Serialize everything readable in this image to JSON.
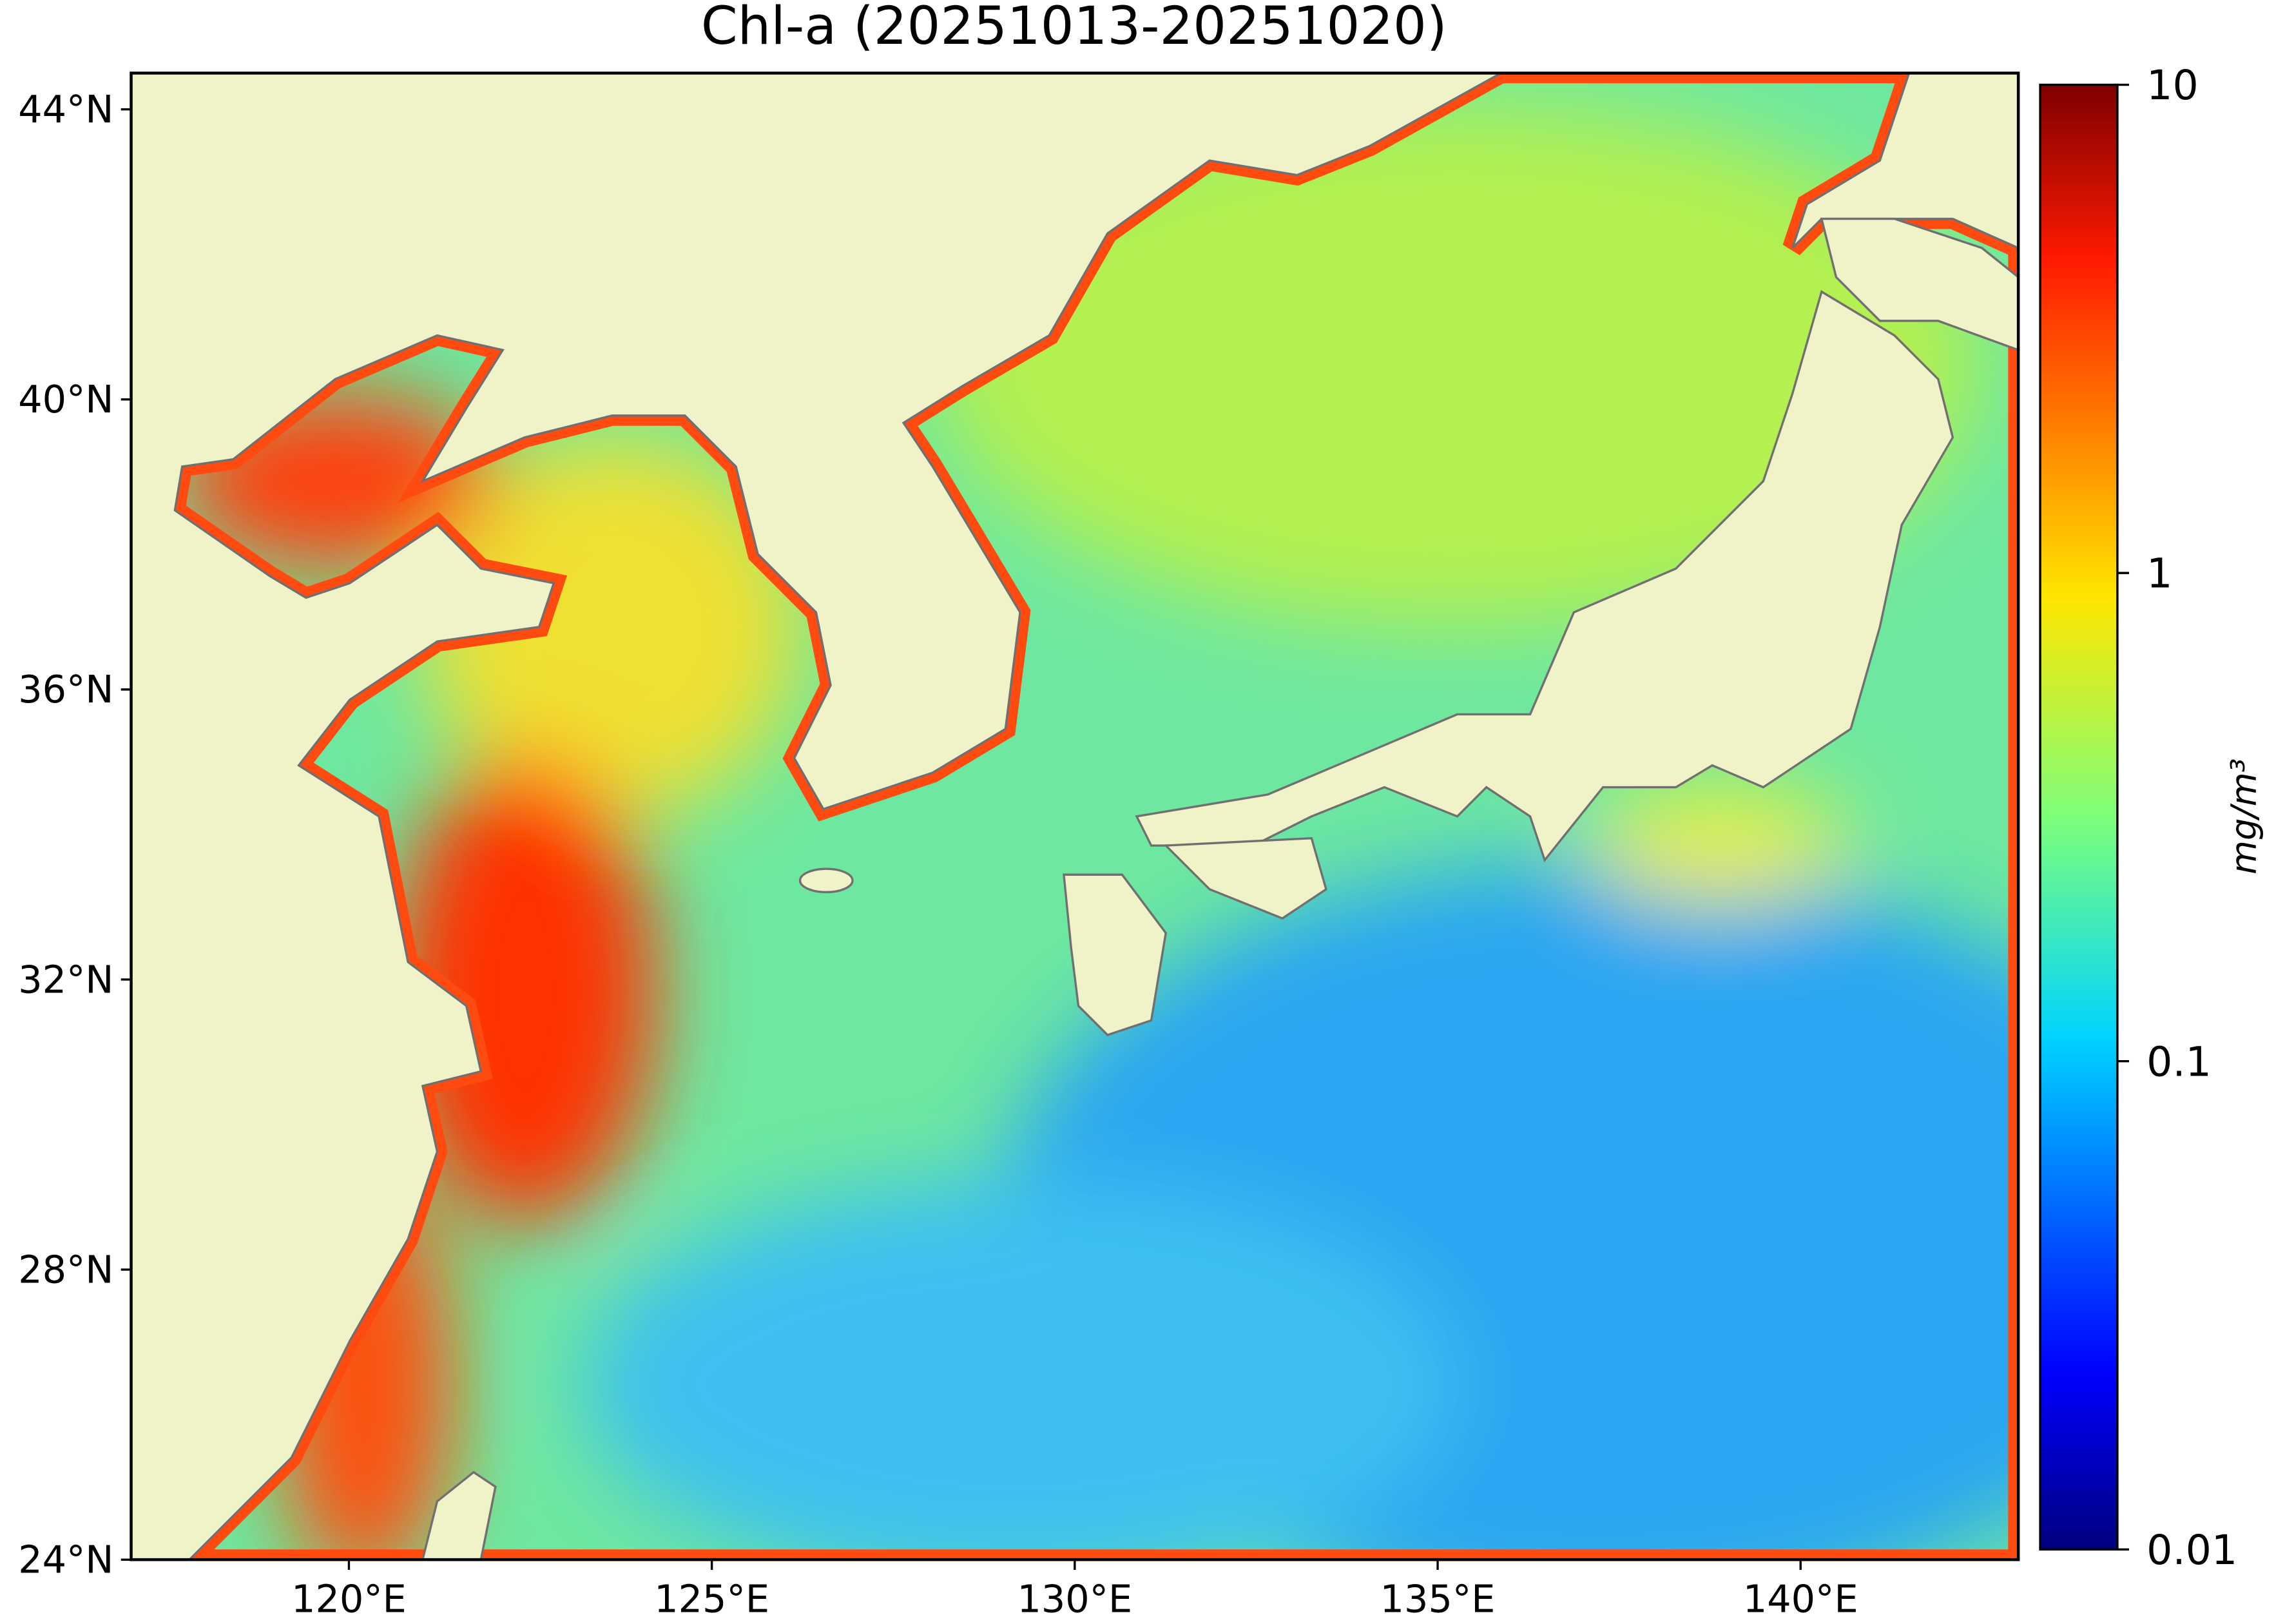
{
  "chart_data": {
    "type": "map",
    "title": "Chl-a (20251013-20251020)",
    "xlim": [
      117,
      143
    ],
    "ylim": [
      24,
      44.5
    ],
    "xticks": [
      {
        "value": 120,
        "label": "120°E"
      },
      {
        "value": 125,
        "label": "125°E"
      },
      {
        "value": 130,
        "label": "130°E"
      },
      {
        "value": 135,
        "label": "135°E"
      },
      {
        "value": 140,
        "label": "140°E"
      }
    ],
    "yticks": [
      {
        "value": 24,
        "label": "24°N"
      },
      {
        "value": 28,
        "label": "28°N"
      },
      {
        "value": 32,
        "label": "32°N"
      },
      {
        "value": 36,
        "label": "36°N"
      },
      {
        "value": 40,
        "label": "40°N"
      },
      {
        "value": 44,
        "label": "44°N"
      }
    ],
    "colorbar": {
      "label": "mg/m³",
      "log_scale": true,
      "lim": [
        0.01,
        10
      ],
      "ticks": [
        0.01,
        0.1,
        1,
        10
      ]
    }
  }
}
